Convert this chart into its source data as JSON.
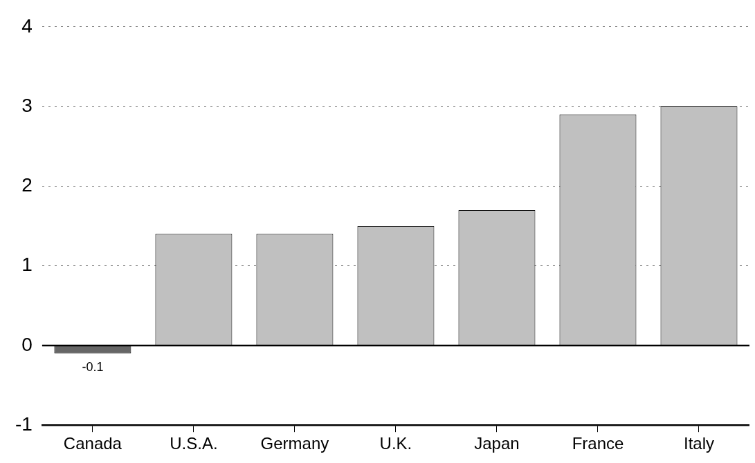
{
  "chart_data": {
    "type": "bar",
    "categories": [
      "Canada",
      "U.S.A.",
      "Germany",
      "U.K.",
      "Japan",
      "France",
      "Italy"
    ],
    "values": [
      -0.1,
      1.4,
      1.4,
      1.5,
      1.7,
      2.9,
      3.0
    ],
    "colors": [
      "#666666",
      "#c0c0c0",
      "#c0c0c0",
      "#c0c0c0",
      "#c0c0c0",
      "#c0c0c0",
      "#c0c0c0"
    ],
    "value_labels": [
      "-0.1",
      null,
      null,
      null,
      null,
      null,
      null
    ],
    "ylim": [
      -1,
      4
    ],
    "yticks": [
      -1,
      0,
      1,
      2,
      3,
      4
    ],
    "grid": "y",
    "ref_lines": [
      {
        "axis": "y",
        "value": 0,
        "color": "#000000",
        "line_style": "solid"
      }
    ]
  }
}
